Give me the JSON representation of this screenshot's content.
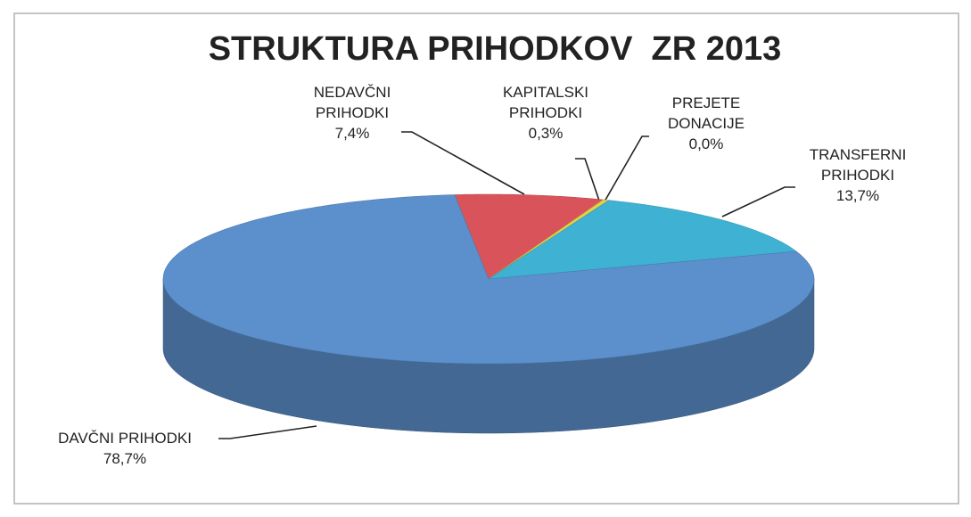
{
  "chart_data": {
    "type": "pie3d",
    "title": "STRUKTURA PRIHODKOV  ZR 2013",
    "categories": [
      "NEDAVČNI PRIHODKI",
      "KAPITALSKI PRIHODKI",
      "PREJETE DONACIJE",
      "TRANSFERNI PRIHODKI",
      "DAVČNI PRIHODKI"
    ],
    "values": [
      7.4,
      0.3,
      0.0,
      13.7,
      78.7
    ],
    "value_labels": [
      "7,4%",
      "0,3%",
      "0,0%",
      "13,7%",
      "78,7%"
    ],
    "colors": [
      "#d9545a",
      "#e2d24a",
      "#8cc152",
      "#3fb2d3",
      "#5b90cc"
    ]
  }
}
